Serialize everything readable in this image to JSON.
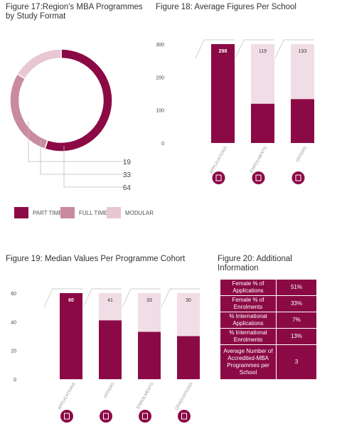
{
  "colors": {
    "primary": "#8b0a45",
    "secondary": "#c98aa1",
    "light": "#f0dde5",
    "modular": "#e8c6d2",
    "line": "#bdbdbd"
  },
  "fig17": {
    "title_line1": "Figure 17:Region's MBA Programmes",
    "title_line2": "by Study Format",
    "chart_data": {
      "type": "pie",
      "slices": [
        {
          "label": "PART TIME",
          "value": 64,
          "color": "#8b0a45"
        },
        {
          "label": "FULL TIME",
          "value": 33,
          "color": "#c98aa1"
        },
        {
          "label": "MODULAR",
          "value": 19,
          "color": "#e8c6d2"
        }
      ]
    }
  },
  "fig18": {
    "title": "Figure 18: Average Figures Per School",
    "chart_data": {
      "type": "bar",
      "categories": [
        "APPLICATIONS",
        "ENROLMENTS",
        "OFFERS"
      ],
      "values": [
        298,
        119,
        133
      ],
      "ylim": [
        0,
        300
      ],
      "yticks": [
        "0",
        "100",
        "200",
        "300"
      ],
      "grid": false
    }
  },
  "fig19": {
    "title": "Figure 19: Median Values Per Programme Cohort",
    "chart_data": {
      "type": "bar",
      "categories": [
        "APPLICATIONS",
        "OFFERS",
        "ENROLMENTS",
        "GRADUATIONS"
      ],
      "values": [
        60,
        41,
        33,
        30
      ],
      "ylim": [
        0,
        60
      ],
      "yticks": [
        "0",
        "20",
        "40",
        "60"
      ],
      "grid": false
    }
  },
  "fig20": {
    "title_line1": "Figure 20: Additional",
    "title_line2": "Information",
    "rows": [
      {
        "label": "Female % of Applications",
        "value": "51%"
      },
      {
        "label": "Female % of Enrolments",
        "value": "33%"
      },
      {
        "label": "% International Applications",
        "value": "7%"
      },
      {
        "label": "% International Enrolments",
        "value": "13%"
      },
      {
        "label": "Average Number of Accredited-MBA Programmes per School",
        "value": "3"
      }
    ]
  }
}
